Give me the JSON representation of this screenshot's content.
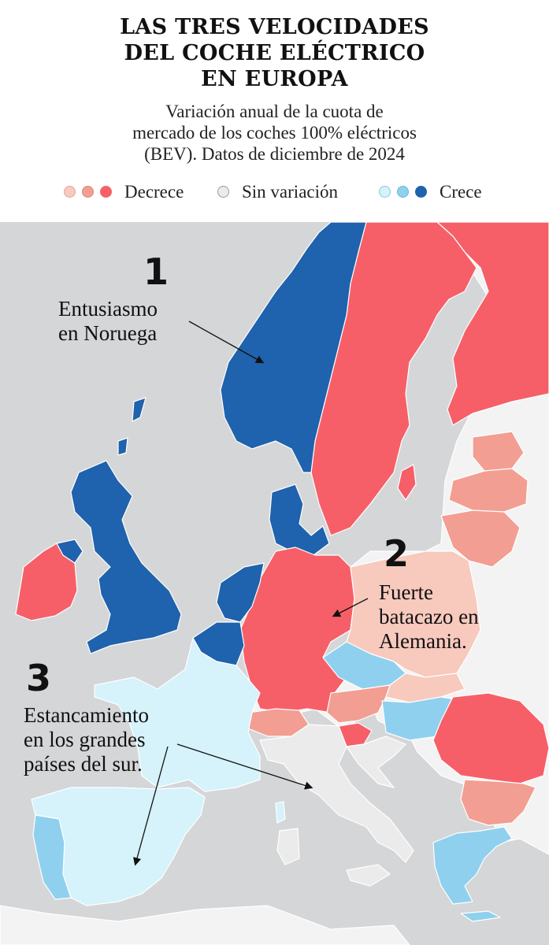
{
  "title_lines": [
    "LAS TRES VELOCIDADES",
    "DEL COCHE ELÉCTRICO",
    "EN EUROPA"
  ],
  "subtitle_lines": [
    "Variación anual de la cuota de",
    "mercado de los coches 100% eléctricos",
    "(BEV). Datos de diciembre de 2024"
  ],
  "legend": {
    "decrece": {
      "label": "Decrece",
      "colors": [
        "#f8c9bd",
        "#f39e92",
        "#f65f68"
      ]
    },
    "sin_variacion": {
      "label": "Sin variación",
      "colors": [
        "#ebebeb"
      ]
    },
    "crece": {
      "label": "Crece",
      "colors": [
        "#d6f2fb",
        "#8fd0ef",
        "#1f62ad"
      ]
    }
  },
  "colors": {
    "sea": "#d5d6d8",
    "land_no_data": "#f3f3f3",
    "border": "#ffffff"
  },
  "annotations": [
    {
      "number": "1",
      "lines": [
        "Entusiasmo",
        "en Noruega"
      ]
    },
    {
      "number": "2",
      "lines": [
        "Fuerte",
        "batacazo en",
        "Alemania."
      ]
    },
    {
      "number": "3",
      "lines": [
        "Estancamiento",
        "en los grandes",
        "países del sur."
      ]
    }
  ],
  "countries": [
    {
      "name": "Noruega",
      "category": "crece_fuerte"
    },
    {
      "name": "Reino Unido",
      "category": "crece_fuerte"
    },
    {
      "name": "Dinamarca",
      "category": "crece_fuerte"
    },
    {
      "name": "Países Bajos",
      "category": "crece_fuerte"
    },
    {
      "name": "Bélgica",
      "category": "crece_fuerte"
    },
    {
      "name": "Irlanda del Norte",
      "category": "crece_fuerte"
    },
    {
      "name": "Suecia",
      "category": "decrece_fuerte"
    },
    {
      "name": "Finlandia",
      "category": "decrece_fuerte"
    },
    {
      "name": "Alemania",
      "category": "decrece_fuerte"
    },
    {
      "name": "Irlanda",
      "category": "decrece_fuerte"
    },
    {
      "name": "Rumanía",
      "category": "decrece_fuerte"
    },
    {
      "name": "Estonia",
      "category": "decrece_medio"
    },
    {
      "name": "Letonia",
      "category": "decrece_medio"
    },
    {
      "name": "Lituania",
      "category": "decrece_medio"
    },
    {
      "name": "Austria",
      "category": "decrece_medio"
    },
    {
      "name": "Suiza",
      "category": "decrece_medio"
    },
    {
      "name": "Bulgaria",
      "category": "decrece_medio"
    },
    {
      "name": "Eslovenia",
      "category": "decrece_fuerte"
    },
    {
      "name": "Polonia",
      "category": "decrece_leve"
    },
    {
      "name": "Eslovaquia",
      "category": "decrece_leve"
    },
    {
      "name": "República Checa",
      "category": "crece_medio"
    },
    {
      "name": "Hungría",
      "category": "crece_medio"
    },
    {
      "name": "Grecia",
      "category": "crece_medio"
    },
    {
      "name": "Portugal",
      "category": "crece_medio"
    },
    {
      "name": "Francia",
      "category": "crece_leve"
    },
    {
      "name": "España",
      "category": "crece_leve"
    },
    {
      "name": "Italia",
      "category": "sin_variacion"
    },
    {
      "name": "Croacia",
      "category": "sin_variacion"
    }
  ]
}
